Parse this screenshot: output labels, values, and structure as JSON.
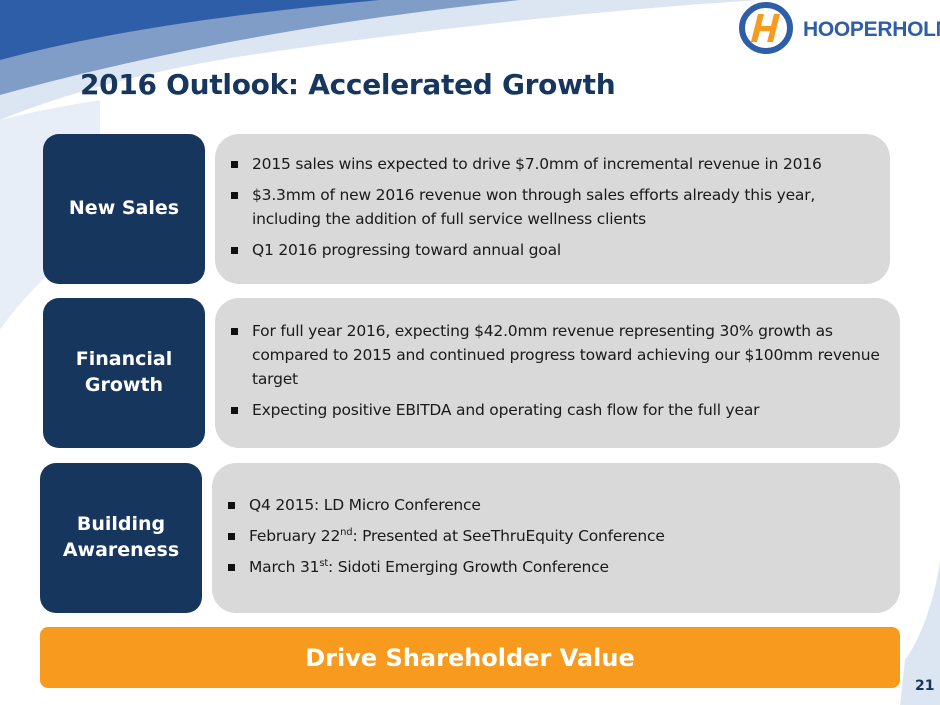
{
  "logo": {
    "text_main": "HOOPER",
    "text_second": "HOLMES"
  },
  "title": "2016 Outlook:  Accelerated Growth",
  "sections": [
    {
      "label": "New Sales",
      "bullets": [
        {
          "text": "2015 sales wins expected to drive $7.0mm of incremental revenue in 2016"
        },
        {
          "text": "$3.3mm of new 2016 revenue won through sales efforts already this year, including the addition of full service wellness clients"
        },
        {
          "text": "Q1 2016 progressing toward annual goal"
        }
      ]
    },
    {
      "label_line1": "Financial",
      "label_line2": "Growth",
      "bullets": [
        {
          "text": "For full year 2016, expecting $42.0mm revenue representing 30% growth as compared to 2015 and continued progress toward achieving our $100mm revenue target"
        },
        {
          "text": "Expecting positive EBITDA and operating cash flow for the full year"
        }
      ]
    },
    {
      "label_line1": "Building",
      "label_line2": "Awareness",
      "bullets": [
        {
          "text": "Q4 2015:  LD Micro Conference"
        },
        {
          "pre": "February 22",
          "sup": "nd",
          "post": ":  Presented at SeeThruEquity Conference"
        },
        {
          "pre": "March 31",
          "sup": "st",
          "post": ":  Sidoti Emerging Growth Conference"
        }
      ]
    }
  ],
  "banner": "Drive Shareholder Value",
  "page_number": "21",
  "colors": {
    "navy": "#17365d",
    "orange": "#f79a1e",
    "gray_box": "#d9d9d9",
    "logo_blue": "#2f5ea8"
  }
}
